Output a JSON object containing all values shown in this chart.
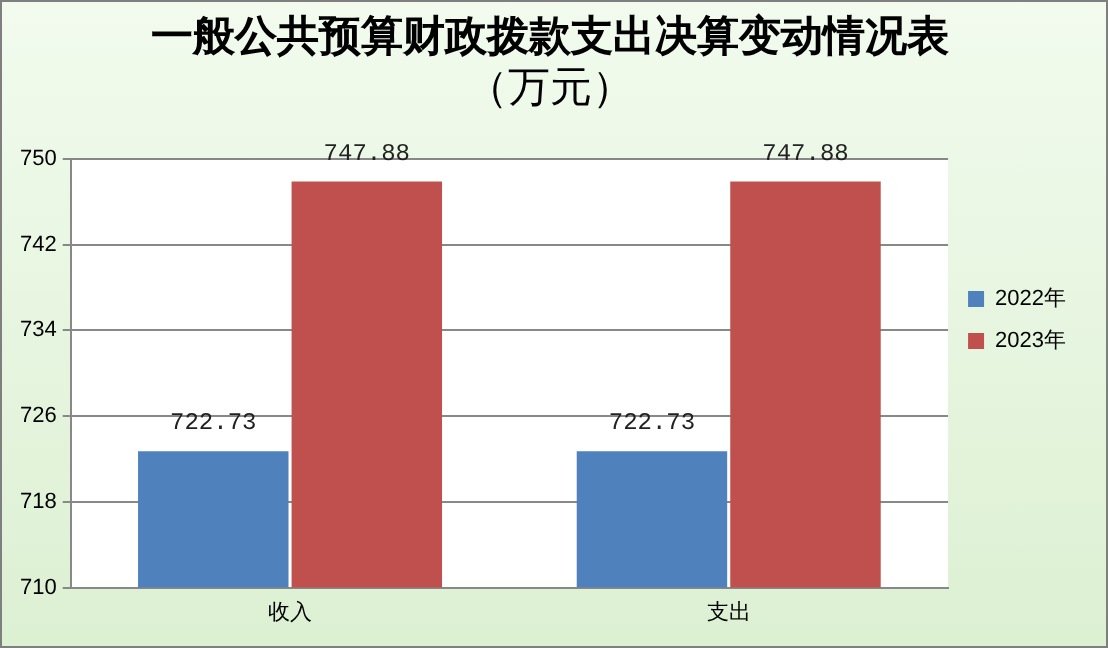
{
  "chart_data": {
    "type": "bar",
    "title": "一般公共预算财政拨款支出决算变动情况表",
    "subtitle": "（万元）",
    "categories": [
      "收入",
      "支出"
    ],
    "series": [
      {
        "name": "2022年",
        "color": "#4f81bd",
        "values": [
          722.73,
          722.73
        ]
      },
      {
        "name": "2023年",
        "color": "#c0504d",
        "values": [
          747.88,
          747.88
        ]
      }
    ],
    "ylim": [
      710,
      750
    ],
    "yticks": [
      710,
      718,
      726,
      734,
      742,
      750
    ],
    "grid": "y",
    "legend": "right",
    "data_labels": true
  }
}
